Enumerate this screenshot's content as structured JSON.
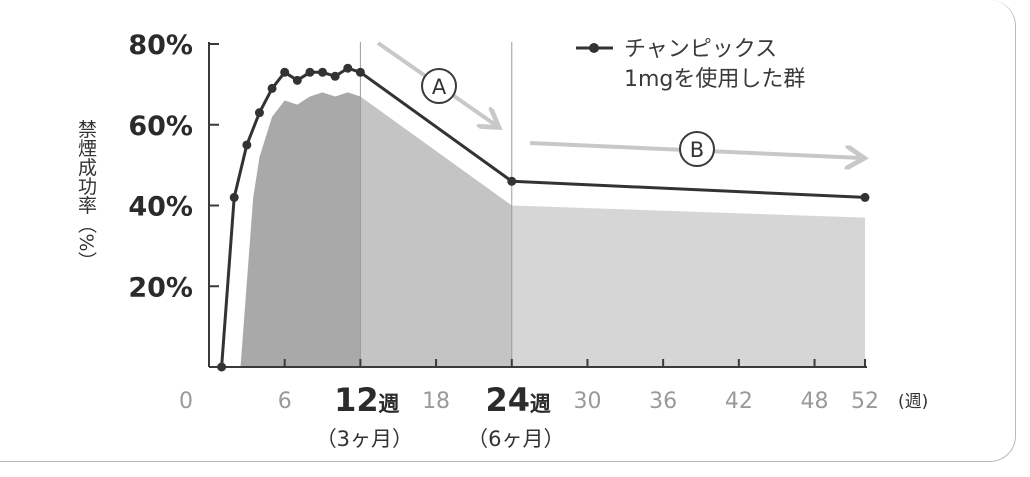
{
  "chart_data": {
    "type": "line",
    "ylabel": "禁煙成功率（%）",
    "ylim": [
      0,
      80
    ],
    "y_ticks": [
      "20%",
      "40%",
      "60%",
      "80%"
    ],
    "y_tick_values": [
      20,
      40,
      60,
      80
    ],
    "x_unit": "(週)",
    "x_ticks": [
      {
        "value": 0,
        "label": "0",
        "suffix": "",
        "sub": "",
        "strong": false
      },
      {
        "value": 6,
        "label": "6",
        "suffix": "",
        "sub": "",
        "strong": false
      },
      {
        "value": 12,
        "label": "12",
        "suffix": "週",
        "sub": "（3ヶ月）",
        "strong": true
      },
      {
        "value": 18,
        "label": "18",
        "suffix": "",
        "sub": "",
        "strong": false
      },
      {
        "value": 24,
        "label": "24",
        "suffix": "週",
        "sub": "（6ヶ月）",
        "strong": true
      },
      {
        "value": 30,
        "label": "30",
        "suffix": "",
        "sub": "",
        "strong": false
      },
      {
        "value": 36,
        "label": "36",
        "suffix": "",
        "sub": "",
        "strong": false
      },
      {
        "value": 42,
        "label": "42",
        "suffix": "",
        "sub": "",
        "strong": false
      },
      {
        "value": 48,
        "label": "48",
        "suffix": "",
        "sub": "",
        "strong": false
      },
      {
        "value": 52,
        "label": "52",
        "suffix": "",
        "sub": "",
        "strong": false
      }
    ],
    "xlim": [
      0,
      52
    ],
    "series": [
      {
        "name": "チャンピックス\n1mgを使用した群",
        "color": "#333333",
        "points": [
          [
            1,
            0
          ],
          [
            2,
            42
          ],
          [
            3,
            55
          ],
          [
            4,
            63
          ],
          [
            5,
            69
          ],
          [
            6,
            73
          ],
          [
            7,
            71
          ],
          [
            8,
            73
          ],
          [
            9,
            73
          ],
          [
            10,
            72
          ],
          [
            11,
            74
          ],
          [
            12,
            73
          ],
          [
            24,
            46
          ],
          [
            52,
            42
          ]
        ]
      }
    ],
    "shaded_area": {
      "color_dark": "#a9a9a9",
      "color_light": "#d6d6d6",
      "points": [
        [
          2.5,
          0
        ],
        [
          3.5,
          42
        ],
        [
          4,
          52
        ],
        [
          5,
          62
        ],
        [
          6,
          66
        ],
        [
          7,
          65
        ],
        [
          8,
          67
        ],
        [
          9,
          68
        ],
        [
          10,
          67
        ],
        [
          11,
          68
        ],
        [
          12,
          67
        ],
        [
          24,
          40
        ],
        [
          52,
          37
        ],
        [
          52,
          0
        ]
      ]
    },
    "annotations": [
      {
        "label": "A",
        "x": 17,
        "y": 70
      },
      {
        "label": "B",
        "x": 38,
        "y": 53
      }
    ]
  }
}
